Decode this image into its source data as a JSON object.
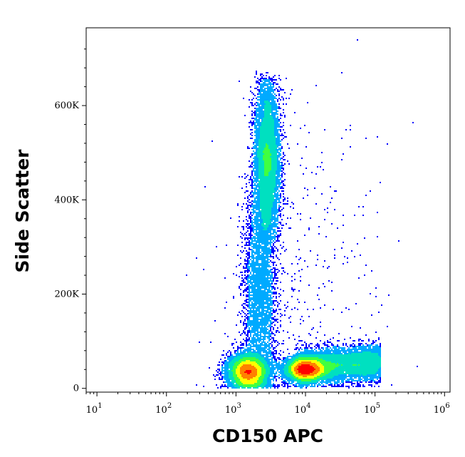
{
  "chart_data": {
    "type": "scatter",
    "subtype": "flow-cytometry-density-dot-plot",
    "title": "",
    "xlabel": "CD150 APC",
    "ylabel": "Side Scatter",
    "x_scale": "log",
    "xlim": [
      7,
      1200000
    ],
    "ylim": [
      -8000,
      765000
    ],
    "x_ticks": [
      {
        "value": 10,
        "base": "10",
        "exp": "1"
      },
      {
        "value": 100,
        "base": "10",
        "exp": "2"
      },
      {
        "value": 1000,
        "base": "10",
        "exp": "3"
      },
      {
        "value": 10000,
        "base": "10",
        "exp": "4"
      },
      {
        "value": 100000,
        "base": "10",
        "exp": "5"
      },
      {
        "value": 1000000,
        "base": "10",
        "exp": "6"
      }
    ],
    "y_ticks": [
      {
        "value": 0,
        "label": "0"
      },
      {
        "value": 200000,
        "label": "200K"
      },
      {
        "value": 400000,
        "label": "400K"
      },
      {
        "value": 600000,
        "label": "600K"
      }
    ],
    "grid": false,
    "legend": "none",
    "color_map": [
      "#0000ff",
      "#00aaff",
      "#00e0c0",
      "#40ff40",
      "#ffff00",
      "#ff8000",
      "#ff0000"
    ],
    "populations": [
      {
        "x_center": 1500,
        "x_spread_decades": 0.14,
        "y_center": 35000,
        "y_spread": 18000,
        "weight": 0.9,
        "shape": "blob"
      },
      {
        "x_center": 2800,
        "x_spread_decades": 0.09,
        "y_center": 480000,
        "y_spread": 120000,
        "weight": 0.85,
        "shape": "column"
      },
      {
        "x_center": 2200,
        "x_spread_decades": 0.12,
        "y_center": 200000,
        "y_spread": 170000,
        "weight": 0.45,
        "shape": "column"
      },
      {
        "x_center": 30000,
        "x_spread_decades": 0.38,
        "y_center": 50000,
        "y_spread": 18000,
        "weight": 0.8,
        "shape": "band"
      },
      {
        "x_center": 10000,
        "x_spread_decades": 0.15,
        "y_center": 40000,
        "y_spread": 12000,
        "weight": 0.7,
        "shape": "blob"
      },
      {
        "x_center": 8000,
        "x_spread_decades": 0.6,
        "y_center": 200000,
        "y_spread": 180000,
        "weight": 0.05,
        "shape": "sparse"
      }
    ]
  }
}
